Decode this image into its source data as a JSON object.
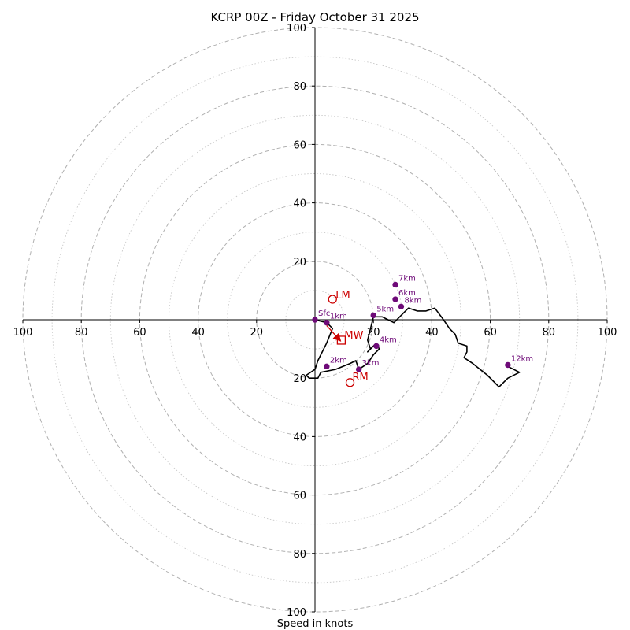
{
  "chart_data": {
    "type": "hodograph",
    "title": "KCRP 00Z - Friday October 31 2025",
    "xlabel": "Speed in knots",
    "units": "knots",
    "axis_range": [
      -100,
      100
    ],
    "major_rings": [
      20,
      40,
      60,
      80,
      100
    ],
    "minor_rings": [
      10,
      30,
      50,
      70,
      90
    ],
    "axis_ticks": [
      20,
      40,
      60,
      80,
      100
    ],
    "colors": {
      "trace": "#000000",
      "height_markers": "#6e0a78",
      "storm_motion": "#cc0000",
      "grid": "#b0b0b0"
    },
    "profile": [
      [
        0,
        0
      ],
      [
        4,
        -1
      ],
      [
        6,
        -3
      ],
      [
        4,
        -8
      ],
      [
        1,
        -14
      ],
      [
        0,
        -17
      ],
      [
        -3,
        -19
      ],
      [
        -2,
        -20
      ],
      [
        1,
        -20
      ],
      [
        2,
        -18
      ],
      [
        7,
        -17
      ],
      [
        12,
        -15
      ],
      [
        14,
        -14
      ],
      [
        15,
        -17
      ],
      [
        18,
        -15
      ],
      [
        20,
        -12
      ],
      [
        22,
        -10
      ],
      [
        21,
        -8
      ],
      [
        18,
        -11
      ],
      [
        19,
        -10
      ],
      [
        18,
        -7
      ],
      [
        19,
        -3
      ],
      [
        20,
        1
      ],
      [
        23,
        1
      ],
      [
        25,
        0
      ],
      [
        27,
        -1
      ],
      [
        30,
        2
      ],
      [
        32,
        4
      ],
      [
        35,
        3
      ],
      [
        38,
        3
      ],
      [
        41,
        4
      ],
      [
        44,
        0
      ],
      [
        46,
        -3
      ],
      [
        48,
        -5
      ],
      [
        49,
        -8
      ],
      [
        52,
        -9
      ],
      [
        52,
        -11
      ],
      [
        51,
        -13
      ],
      [
        54,
        -15
      ],
      [
        59,
        -19
      ],
      [
        63,
        -23
      ],
      [
        66,
        -20
      ],
      [
        70,
        -18
      ],
      [
        66,
        -16
      ]
    ],
    "height_markers": [
      {
        "label": "Sfc",
        "u": 0,
        "v": 0
      },
      {
        "label": "1km",
        "u": 4,
        "v": -1
      },
      {
        "label": "2km",
        "u": 4,
        "v": -16
      },
      {
        "label": "3km",
        "u": 15,
        "v": -17
      },
      {
        "label": "4km",
        "u": 21,
        "v": -9
      },
      {
        "label": "5km",
        "u": 20,
        "v": 1.5
      },
      {
        "label": "6km",
        "u": 27.5,
        "v": 7
      },
      {
        "label": "7km",
        "u": 27.5,
        "v": 12
      },
      {
        "label": "8km",
        "u": 29.5,
        "v": 4.5
      },
      {
        "label": "12km",
        "u": 66,
        "v": -15.5
      }
    ],
    "storm_motion": {
      "lm": {
        "label": "LM",
        "u": 6,
        "v": 7
      },
      "mw": {
        "label": "MW",
        "u": 9,
        "v": -7
      },
      "rm": {
        "label": "RM",
        "u": 12,
        "v": -21.5
      },
      "shear_vector_from": [
        4,
        -2
      ],
      "shear_vector_to": [
        8.5,
        -7
      ]
    }
  }
}
